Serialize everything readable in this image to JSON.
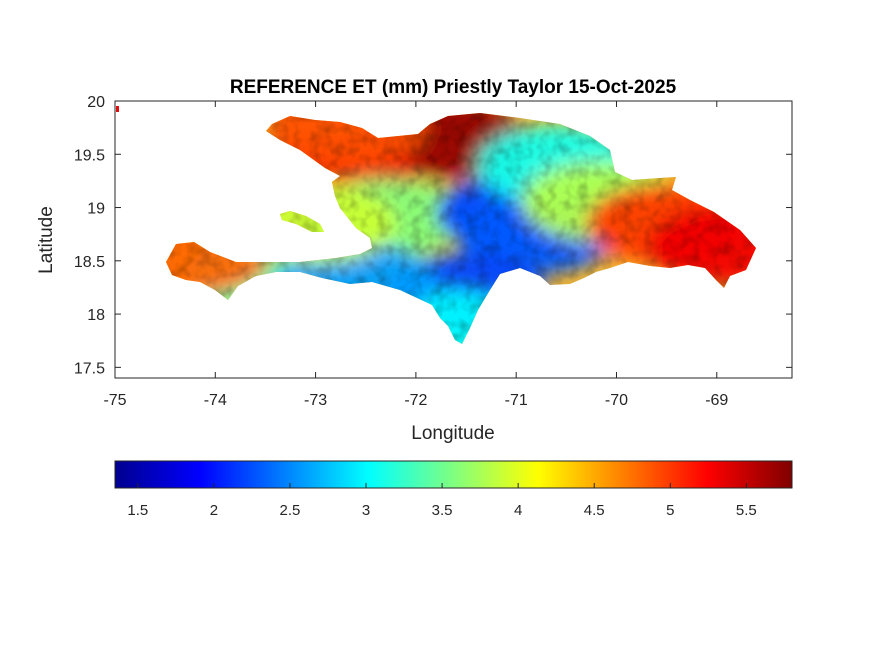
{
  "figure": {
    "title": "REFERENCE ET (mm) Priestly Taylor 15-Oct-2025"
  },
  "chart_data": {
    "type": "heatmap",
    "title": "REFERENCE ET (mm) Priestly Taylor 15-Oct-2025",
    "xlabel": "Longitude",
    "ylabel": "Latitude",
    "xlim": [
      -75,
      -68.25
    ],
    "ylim": [
      17.4,
      20
    ],
    "x_ticks": [
      -75,
      -74,
      -73,
      -72,
      -71,
      -70,
      -69
    ],
    "x_tick_labels": [
      "-75",
      "-74",
      "-73",
      "-72",
      "-71",
      "-70",
      "-69"
    ],
    "y_ticks": [
      17.5,
      18,
      18.5,
      19,
      19.5,
      20
    ],
    "y_tick_labels": [
      "17.5",
      "18",
      "18.5",
      "19",
      "19.5",
      "20"
    ],
    "colormap": "jet",
    "colorbar": {
      "position": "bottom",
      "range": [
        1.35,
        5.8
      ],
      "ticks": [
        1.5,
        2,
        2.5,
        3,
        3.5,
        4,
        4.5,
        5,
        5.5
      ],
      "tick_labels": [
        "1.5",
        "2",
        "2.5",
        "3",
        "3.5",
        "4",
        "4.5",
        "5",
        "5.5"
      ]
    },
    "regions": [
      {
        "name": "",
        "lon": -71.7,
        "lat": 19.65,
        "value": 5.7
      },
      {
        "name": "",
        "lon": -72.8,
        "lat": 19.3,
        "value": 5.3
      },
      {
        "name": "",
        "lon": -72.7,
        "lat": 19.75,
        "value": 4.9
      },
      {
        "name": "",
        "lon": -72.3,
        "lat": 18.9,
        "value": 3.6
      },
      {
        "name": "",
        "lon": -71.0,
        "lat": 18.95,
        "value": 2.2
      },
      {
        "name": "",
        "lon": -70.8,
        "lat": 18.75,
        "value": 2.3
      },
      {
        "name": "",
        "lon": -70.6,
        "lat": 19.4,
        "value": 3.1
      },
      {
        "name": "",
        "lon": -70.15,
        "lat": 19.05,
        "value": 3.8
      },
      {
        "name": "",
        "lon": -69.5,
        "lat": 18.85,
        "value": 5.0
      },
      {
        "name": "",
        "lon": -68.9,
        "lat": 18.65,
        "value": 5.3
      },
      {
        "name": "",
        "lon": -71.5,
        "lat": 18.2,
        "value": 2.2
      },
      {
        "name": "",
        "lon": -71.7,
        "lat": 17.85,
        "value": 3.0
      },
      {
        "name": "",
        "lon": -73.5,
        "lat": 18.35,
        "value": 3.4
      },
      {
        "name": "",
        "lon": -74.25,
        "lat": 18.55,
        "value": 4.8
      },
      {
        "name": "",
        "lon": -72.6,
        "lat": 18.3,
        "value": 2.6
      },
      {
        "name": "",
        "lon": -73.0,
        "lat": 18.85,
        "value": 3.9
      }
    ]
  }
}
